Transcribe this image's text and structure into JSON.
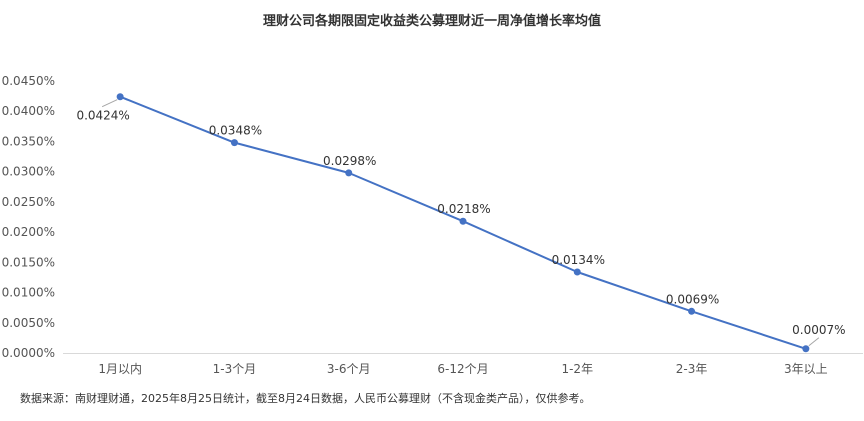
{
  "chart_data": {
    "type": "line",
    "title": "理财公司各期限固定收益类公募理财近一周净值增长率均值",
    "categories": [
      "1月以内",
      "1-3个月",
      "3-6个月",
      "6-12个月",
      "1-2年",
      "2-3年",
      "3年以上"
    ],
    "series": [
      {
        "name": "",
        "values": [
          0.0424,
          0.0348,
          0.0298,
          0.0218,
          0.0134,
          0.0069,
          0.0007
        ]
      }
    ],
    "data_labels": [
      "0.0424%",
      "0.0348%",
      "0.0298%",
      "0.0218%",
      "0.0134%",
      "0.0069%",
      "0.0007%"
    ],
    "y_ticks": [
      "0.0000%",
      "0.0050%",
      "0.0100%",
      "0.0150%",
      "0.0200%",
      "0.0250%",
      "0.0300%",
      "0.0350%",
      "0.0400%",
      "0.0450%"
    ],
    "ylim": [
      0,
      0.045
    ],
    "xlabel": "",
    "ylabel": "",
    "grid": false,
    "legend": "none",
    "line_color": "#4472C4"
  },
  "footer": {
    "source": "数据来源：南财理财通，2025年8月25日统计，截至8月24日数据，人民币公募理财（不含现金类产品），仅供参考。"
  }
}
